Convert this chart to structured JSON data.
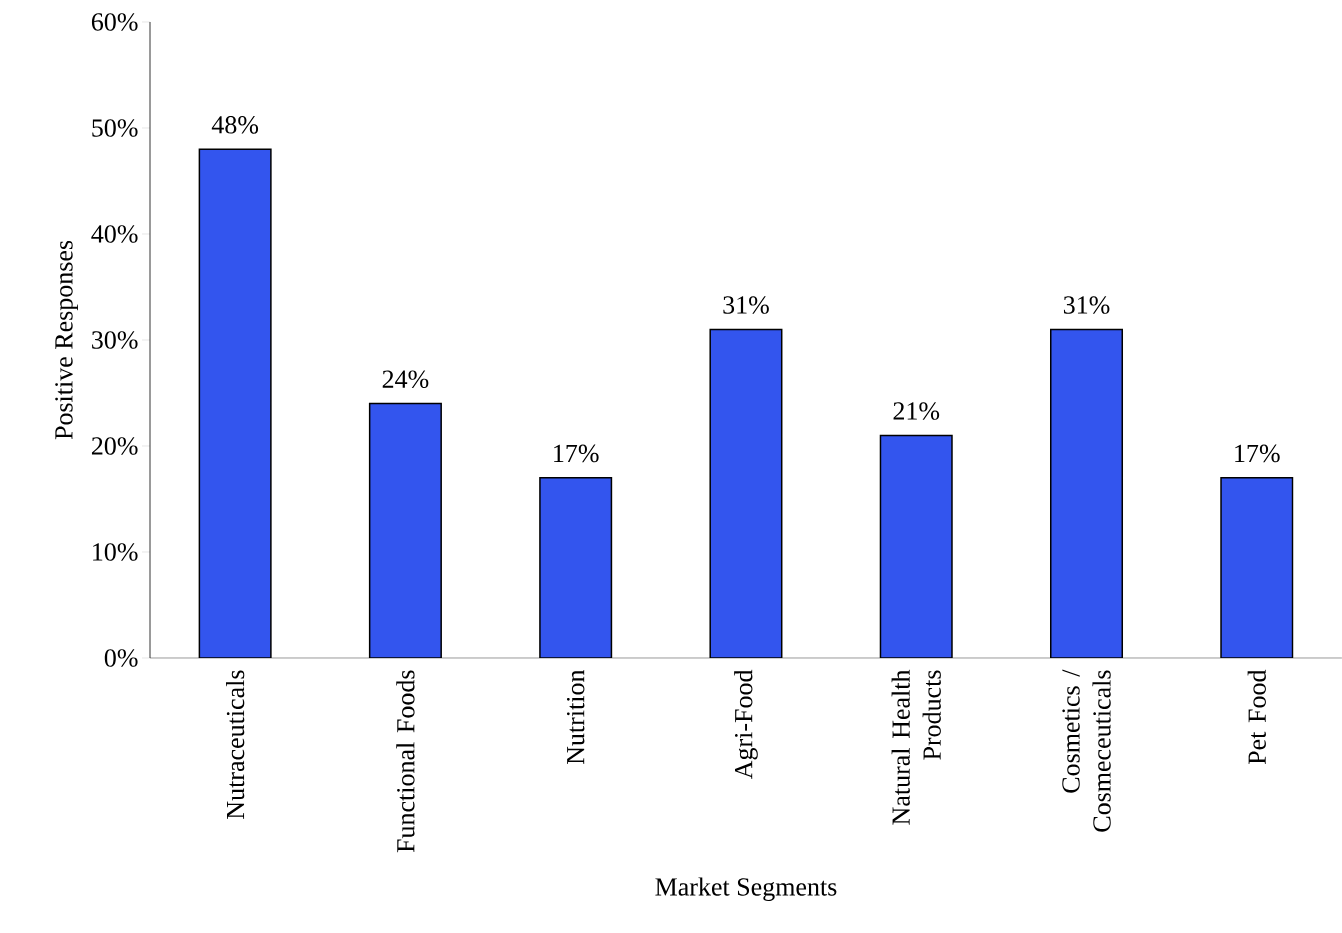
{
  "chart_data": {
    "type": "bar",
    "xlabel": "Market Segments",
    "ylabel": "Positive Responses",
    "categories": [
      "Nutraceuticals",
      "Functional Foods",
      "Nutrition",
      "Agri-Food",
      "Natural Health Products",
      "Cosmetics / Cosmeceuticals",
      "Pet Food"
    ],
    "values": [
      48,
      24,
      17,
      31,
      21,
      31,
      17
    ],
    "value_labels": [
      "48%",
      "24%",
      "17%",
      "31%",
      "21%",
      "31%",
      "17%"
    ],
    "color": "#3355ee",
    "ylim": [
      0,
      60
    ],
    "yticks": [
      {
        "value": 0,
        "label": "0%"
      },
      {
        "value": 10,
        "label": "10%"
      },
      {
        "value": 20,
        "label": "20%"
      },
      {
        "value": 30,
        "label": "30%"
      },
      {
        "value": 40,
        "label": "40%"
      },
      {
        "value": 50,
        "label": "50%"
      },
      {
        "value": 60,
        "label": "60%"
      }
    ]
  }
}
